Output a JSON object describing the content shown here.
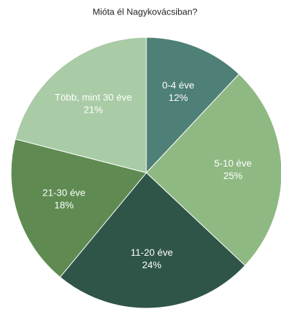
{
  "chart_data": {
    "type": "pie",
    "title": "Mióta él Nagykovácsiban?",
    "categories": [
      "0-4 éve",
      "5-10 éve",
      "11-20 éve",
      "21-30 éve",
      "Több, mint 30 éve"
    ],
    "values": [
      12,
      25,
      24,
      18,
      21
    ],
    "value_labels": [
      "12%",
      "25%",
      "24%",
      "18%",
      "21%"
    ],
    "colors": [
      "#4e8077",
      "#8fb982",
      "#2f5549",
      "#5f8b52",
      "#a9cba6"
    ]
  }
}
